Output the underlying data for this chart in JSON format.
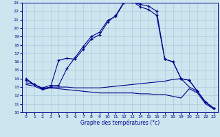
{
  "xlabel": "Graphe des températures (°c)",
  "xlim": [
    -0.5,
    23.5
  ],
  "ylim": [
    10,
    23
  ],
  "yticks": [
    10,
    11,
    12,
    13,
    14,
    15,
    16,
    17,
    18,
    19,
    20,
    21,
    22,
    23
  ],
  "xticks": [
    0,
    1,
    2,
    3,
    4,
    5,
    6,
    7,
    8,
    9,
    10,
    11,
    12,
    13,
    14,
    15,
    16,
    17,
    18,
    19,
    20,
    21,
    22,
    23
  ],
  "bg_color": "#cce5ee",
  "line_color": "#00008b",
  "grid_color": "#aaccdd",
  "curve1_x": [
    0,
    1,
    2,
    3,
    4,
    5,
    6,
    7,
    8,
    9,
    10,
    11,
    12,
    13,
    14,
    15,
    16,
    17,
    18,
    19,
    20,
    21,
    22,
    23
  ],
  "curve1_y": [
    13.8,
    13.3,
    12.8,
    13.0,
    16.2,
    16.4,
    16.3,
    17.5,
    18.7,
    19.2,
    20.7,
    21.5,
    23.1,
    23.2,
    22.5,
    22.2,
    21.5,
    16.3,
    16.0,
    14.0,
    13.8,
    12.5,
    11.2,
    10.5
  ],
  "curve2_x": [
    0,
    1,
    2,
    3,
    4,
    5,
    6,
    7,
    8,
    9,
    10,
    11,
    12,
    13,
    14,
    15,
    16,
    17,
    18,
    19,
    20,
    21,
    22,
    23
  ],
  "curve2_y": [
    14.0,
    13.3,
    12.9,
    13.2,
    13.2,
    15.2,
    16.5,
    17.8,
    19.0,
    19.5,
    20.9,
    21.4,
    23.0,
    23.1,
    22.8,
    22.6,
    22.0,
    16.3,
    16.0,
    14.0,
    13.8,
    12.5,
    11.2,
    10.5
  ],
  "curve3_x": [
    0,
    1,
    2,
    3,
    4,
    5,
    6,
    7,
    8,
    9,
    10,
    11,
    12,
    13,
    14,
    15,
    16,
    17,
    18,
    19,
    20,
    21,
    22,
    23
  ],
  "curve3_y": [
    13.5,
    13.3,
    12.8,
    13.0,
    13.0,
    13.0,
    12.9,
    12.9,
    12.9,
    12.9,
    13.0,
    13.1,
    13.2,
    13.3,
    13.4,
    13.5,
    13.6,
    13.7,
    13.9,
    14.0,
    13.0,
    12.5,
    11.2,
    10.5
  ],
  "curve4_x": [
    0,
    1,
    2,
    3,
    4,
    5,
    6,
    7,
    8,
    9,
    10,
    11,
    12,
    13,
    14,
    15,
    16,
    17,
    18,
    19,
    20,
    21,
    22,
    23
  ],
  "curve4_y": [
    13.3,
    13.1,
    12.7,
    12.9,
    12.8,
    12.7,
    12.6,
    12.5,
    12.4,
    12.3,
    12.3,
    12.3,
    12.3,
    12.3,
    12.2,
    12.2,
    12.1,
    12.1,
    11.9,
    11.7,
    12.8,
    12.3,
    11.0,
    10.4
  ]
}
